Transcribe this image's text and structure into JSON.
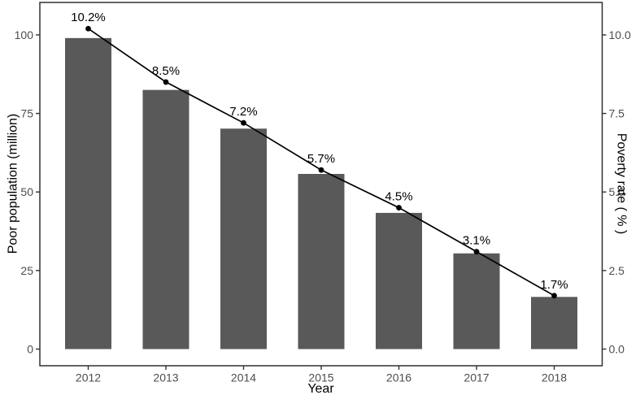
{
  "figure": {
    "description": "Combination bar and line chart, white background, no title, no legend, fully bordered panel without gridlines"
  },
  "chart_data": {
    "type": "bar+line",
    "title": "",
    "categories": [
      "2012",
      "2013",
      "2014",
      "2015",
      "2016",
      "2017",
      "2018"
    ],
    "series": [
      {
        "name": "Poor population (million)",
        "type": "bar",
        "axis": "left",
        "values": [
          98.99,
          82.49,
          70.17,
          55.75,
          43.35,
          30.46,
          16.6
        ]
      },
      {
        "name": "Poverty rate (%)",
        "type": "line",
        "axis": "right",
        "values": [
          10.2,
          8.5,
          7.2,
          5.7,
          4.5,
          3.1,
          1.7
        ],
        "point_labels": [
          "10.2%",
          "8.5%",
          "7.2%",
          "5.7%",
          "4.5%",
          "3.1%",
          "1.7%"
        ]
      }
    ],
    "xlabel": "Year",
    "ylabel_left": "Poor population (million)",
    "ylabel_right": "Poverty rate ( % )",
    "left_axis": {
      "ticks": [
        "0",
        "25",
        "50",
        "75",
        "100"
      ],
      "range": [
        0,
        100
      ]
    },
    "right_axis": {
      "ticks": [
        "0.0",
        "2.5",
        "5.0",
        "7.5",
        "10.0"
      ],
      "range": [
        0,
        10
      ]
    },
    "grid": false,
    "legend": "none",
    "colors": {
      "bar_fill": "#595959",
      "line": "#000000",
      "point": "#000000",
      "tick_text": "#4d4d4d",
      "tick_mark": "#333333",
      "axis_title_text": "#000000",
      "point_label_text": "#000000",
      "panel_border": "#303030",
      "background": "#ffffff"
    }
  }
}
